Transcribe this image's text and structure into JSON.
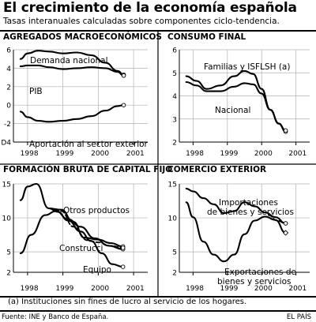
{
  "header": {
    "title": "El crecimiento de la economía española",
    "subtitle": "Tasas interanuales calculadas sobre componentes ciclo-tendencia."
  },
  "footer": {
    "note": "(a) Instituciones sin fines de lucro al servicio de los hogares.",
    "source": "Fuente: INE y Banco de España.",
    "credit": "EL PAÍS"
  },
  "colors": {
    "line": "#000000",
    "grid": "#b0b0b0",
    "background": "#ffffff"
  },
  "chart_data": [
    {
      "type": "line",
      "title": "AGREGADOS MACROECONÓMICOS",
      "xlabel": "",
      "ylabel": "",
      "xlim": [
        1997.6,
        2001.4
      ],
      "ylim": [
        -4,
        6
      ],
      "yticks": [
        6,
        4,
        2,
        0,
        -2,
        -4
      ],
      "ytick_labels": [
        "6",
        "4",
        "2",
        "0",
        "-2",
        "D4"
      ],
      "xtick_labels": [
        {
          "x": 1998,
          "label": "1998"
        },
        {
          "x": 1999,
          "label": "1999"
        },
        {
          "x": 2000,
          "label": "2000"
        },
        {
          "x": 2001,
          "label": "2001"
        }
      ],
      "grid": true,
      "series": [
        {
          "name": "Demanda nacional",
          "x": [
            1997.8,
            1998.0,
            1998.3,
            1998.6,
            1999.0,
            1999.4,
            1999.8,
            2000.2,
            2000.55,
            2000.72
          ],
          "y": [
            5.0,
            5.6,
            5.9,
            5.8,
            5.6,
            5.7,
            5.4,
            4.6,
            3.7,
            3.3
          ],
          "dash": "solid",
          "end_marker": "circle"
        },
        {
          "name": "PIB",
          "x": [
            1997.8,
            1998.0,
            1998.3,
            1998.6,
            1999.0,
            1999.4,
            1999.8,
            2000.2,
            2000.55,
            2000.72
          ],
          "y": [
            4.2,
            4.3,
            4.3,
            4.1,
            3.9,
            4.0,
            4.1,
            4.0,
            3.6,
            3.2
          ],
          "dash": "solid",
          "end_marker": "circle"
        },
        {
          "name": "Aportación al sector exterior",
          "x": [
            1997.8,
            1998.0,
            1998.3,
            1998.6,
            1999.0,
            1999.4,
            1999.8,
            2000.2,
            2000.55,
            2000.72
          ],
          "y": [
            -0.7,
            -1.3,
            -1.7,
            -1.8,
            -1.7,
            -1.5,
            -1.2,
            -0.6,
            -0.1,
            0.0
          ],
          "dash": "solid",
          "end_marker": "circle"
        }
      ],
      "labels": [
        "Demanda nacional",
        "PIB",
        "Aportación al sector exterior"
      ]
    },
    {
      "type": "line",
      "title": "CONSUMO FINAL",
      "xlabel": "",
      "ylabel": "",
      "xlim": [
        1997.6,
        2001.4
      ],
      "ylim": [
        2,
        6
      ],
      "yticks": [
        6,
        5,
        4,
        3,
        2
      ],
      "ytick_labels": [
        "6",
        "5",
        "4",
        "3",
        "2"
      ],
      "xtick_labels": [
        {
          "x": 1998,
          "label": "1998"
        },
        {
          "x": 1999,
          "label": "1999"
        },
        {
          "x": 2000,
          "label": "2000"
        },
        {
          "x": 2001,
          "label": "2001"
        }
      ],
      "grid": true,
      "series": [
        {
          "name": "Familias y ISFLSH (a)",
          "x": [
            1997.8,
            1998.1,
            1998.4,
            1998.8,
            1999.2,
            1999.5,
            1999.75,
            2000.0,
            2000.25,
            2000.5,
            2000.7
          ],
          "y": [
            4.85,
            4.65,
            4.3,
            4.45,
            4.85,
            5.08,
            4.95,
            4.3,
            3.4,
            2.8,
            2.45
          ],
          "dash": "solid",
          "end_marker": "circle"
        },
        {
          "name": "Nacional",
          "x": [
            1997.8,
            1998.1,
            1998.4,
            1998.8,
            1999.2,
            1999.5,
            1999.75,
            2000.0,
            2000.25,
            2000.5,
            2000.7
          ],
          "y": [
            4.6,
            4.45,
            4.2,
            4.2,
            4.4,
            4.55,
            4.5,
            4.1,
            3.4,
            2.8,
            2.5
          ],
          "dash": "solid",
          "end_marker": "circle"
        }
      ],
      "labels": [
        "Familias y ISFLSH (a)",
        "Nacional"
      ]
    },
    {
      "type": "line",
      "title": "FORMACIÓN BRUTA DE CAPITAL FIJO",
      "xlabel": "",
      "ylabel": "",
      "xlim": [
        1997.6,
        2001.4
      ],
      "ylim": [
        2,
        15
      ],
      "yticks": [
        15,
        10,
        5,
        2
      ],
      "ytick_labels": [
        "15",
        "10",
        "5",
        "2"
      ],
      "xtick_labels": [
        {
          "x": 1998,
          "label": "1998"
        },
        {
          "x": 1999,
          "label": "1999"
        },
        {
          "x": 2000,
          "label": "2000"
        },
        {
          "x": 2001,
          "label": "2001"
        }
      ],
      "grid": true,
      "series": [
        {
          "name": "Otros productos",
          "x": [
            1997.8,
            1998.1,
            1998.5,
            1998.8,
            1999.15,
            1999.5,
            1999.9,
            2000.3,
            2000.7
          ],
          "y": [
            4.8,
            7.5,
            10.4,
            11.0,
            9.8,
            8.7,
            7.0,
            5.9,
            5.4
          ],
          "dash": "solid",
          "end_marker": "circle"
        },
        {
          "name": "Construcción",
          "x": [
            1997.8,
            1998.0,
            1998.25,
            1998.6,
            1998.95,
            1999.3,
            1999.6,
            2000.0,
            2000.35,
            2000.7
          ],
          "y": [
            12.6,
            14.6,
            15.0,
            11.4,
            11.2,
            9.4,
            7.1,
            6.8,
            6.3,
            5.8
          ],
          "dash": "solid",
          "end_marker": "circle"
        },
        {
          "name": "",
          "x": [
            1998.6,
            1998.95,
            1999.3,
            1999.7,
            2000.0,
            2000.35,
            2000.7
          ],
          "y": [
            11.4,
            11.0,
            8.7,
            6.7,
            6.4,
            5.9,
            5.6
          ],
          "dash": "dashed",
          "end_marker": "circle"
        },
        {
          "name": "Equipo",
          "x": [
            1998.6,
            1998.85,
            1999.15,
            1999.5,
            1999.8,
            2000.1,
            2000.4,
            2000.7
          ],
          "y": [
            11.4,
            10.9,
            9.6,
            8.0,
            6.6,
            4.8,
            3.2,
            2.8
          ],
          "dash": "solid",
          "end_marker": "circle"
        }
      ],
      "labels": [
        "Otros productos",
        "Construcci",
        "Equipo"
      ]
    },
    {
      "type": "line",
      "title": "COMERCIO EXTERIOR",
      "xlabel": "",
      "ylabel": "",
      "xlim": [
        1997.6,
        2001.4
      ],
      "ylim": [
        2,
        15
      ],
      "yticks": [
        15,
        10,
        5,
        2
      ],
      "ytick_labels": [
        "15",
        "10",
        "5",
        "2"
      ],
      "xtick_labels": [
        {
          "x": 1998,
          "label": "1998"
        },
        {
          "x": 1999,
          "label": "1999"
        },
        {
          "x": 2000,
          "label": "2000"
        },
        {
          "x": 2001,
          "label": "2001"
        }
      ],
      "grid": true,
      "series": [
        {
          "name": "Importaciones de bienes y servicios",
          "x": [
            1997.8,
            1998.0,
            1998.3,
            1998.6,
            1998.9,
            1999.2,
            1999.5,
            1999.8,
            2000.1,
            2000.4,
            2000.7
          ],
          "y": [
            14.3,
            13.9,
            12.9,
            12.0,
            10.7,
            11.0,
            12.3,
            11.7,
            10.8,
            10.1,
            9.2
          ],
          "dash": "solid",
          "end_marker": "circle"
        },
        {
          "name": "Exportaciones de bienes y servicios",
          "x": [
            1997.8,
            1998.0,
            1998.3,
            1998.6,
            1998.9,
            1999.2,
            1999.5,
            1999.8,
            2000.1,
            2000.4,
            2000.7
          ],
          "y": [
            12.3,
            10.1,
            6.5,
            4.6,
            3.6,
            4.6,
            7.6,
            9.6,
            10.2,
            9.7,
            7.8
          ],
          "dash": "solid",
          "end_marker": "diamond"
        },
        {
          "name": "",
          "x": [
            2000.2,
            2000.45,
            2000.7
          ],
          "y": [
            10.4,
            9.6,
            9.2
          ],
          "dash": "dashed",
          "end_marker": "circle"
        }
      ],
      "labels": [
        "Importaciones de bienes y servicios",
        "Exportaciones de bienes y servicios"
      ]
    }
  ]
}
